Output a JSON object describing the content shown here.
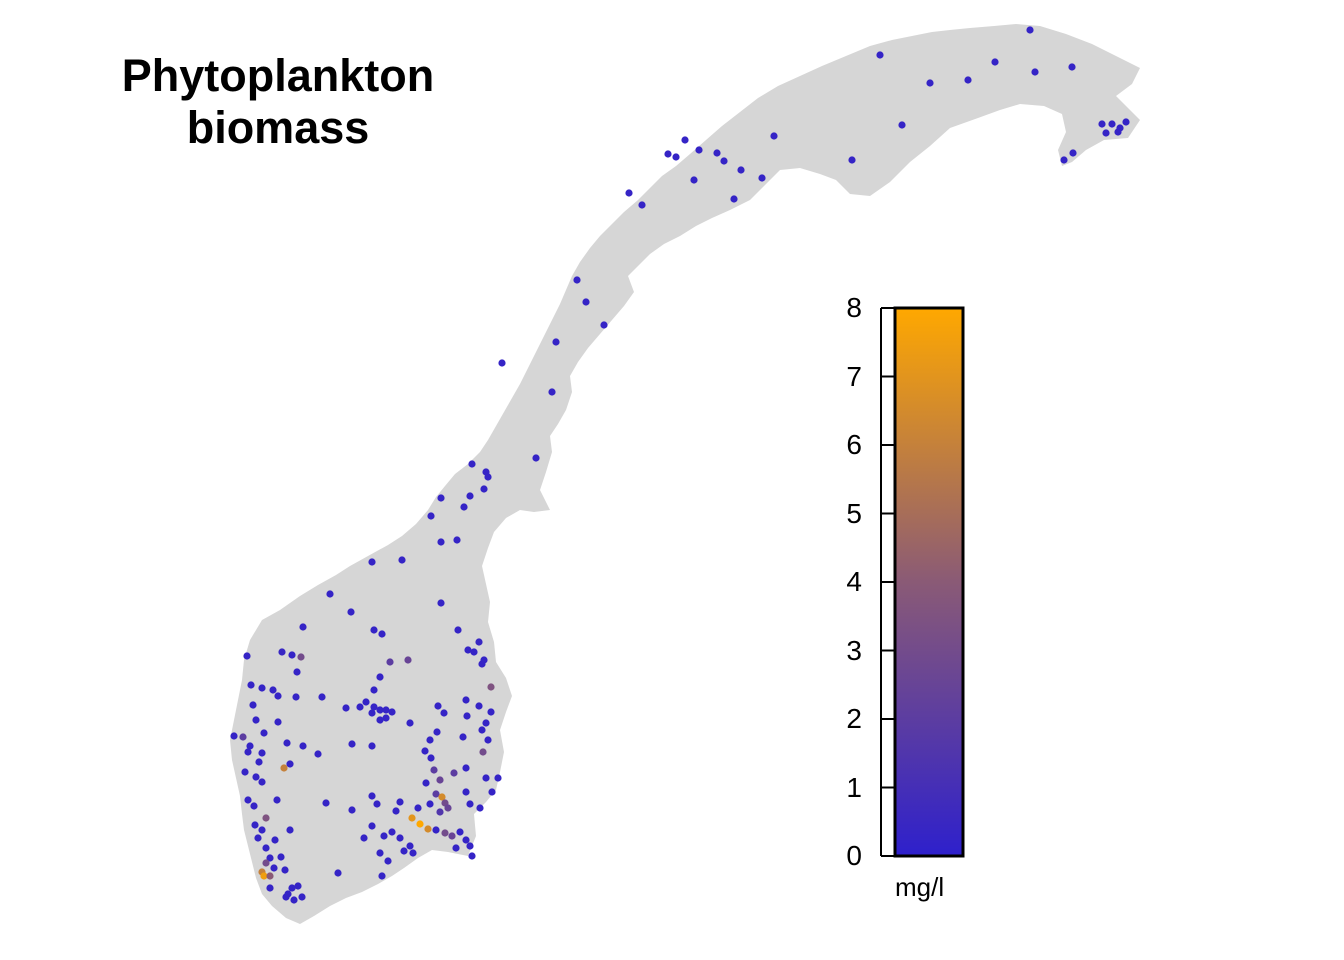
{
  "title": {
    "line1": "Phytoplankton",
    "line2": "biomass"
  },
  "legend": {
    "ticks": [
      "0",
      "1",
      "2",
      "3",
      "4",
      "5",
      "6",
      "7",
      "8"
    ],
    "min": 0,
    "max": 8,
    "unit": "mg/l",
    "color_low": "#2e20cc",
    "color_mid": "#8a5a76",
    "color_high": "#ffa800"
  },
  "map": {
    "land_color": "#d6d6d6",
    "background": "#ffffff",
    "sites_north": [
      [
        880,
        55,
        0.3
      ],
      [
        930,
        83,
        0.3
      ],
      [
        968,
        80,
        0.3
      ],
      [
        995,
        62,
        0.3
      ],
      [
        1030,
        30,
        0.3
      ],
      [
        1035,
        72,
        0.3
      ],
      [
        1072,
        67,
        0.3
      ],
      [
        902,
        125,
        0.3
      ],
      [
        852,
        160,
        0.3
      ],
      [
        774,
        136,
        0.3
      ],
      [
        1102,
        124,
        0.3
      ],
      [
        1112,
        124,
        0.3
      ],
      [
        1120,
        128,
        0.3
      ],
      [
        1126,
        122,
        0.3
      ],
      [
        1118,
        132,
        0.3
      ],
      [
        1106,
        133,
        0.3
      ],
      [
        1073,
        153,
        0.3
      ],
      [
        1064,
        160,
        0.3
      ],
      [
        685,
        140,
        0.3
      ],
      [
        668,
        154,
        0.3
      ],
      [
        676,
        157,
        0.3
      ],
      [
        699,
        150,
        0.3
      ],
      [
        717,
        153,
        0.3
      ],
      [
        724,
        161,
        0.3
      ],
      [
        741,
        170,
        0.3
      ],
      [
        762,
        178,
        0.3
      ],
      [
        694,
        180,
        0.3
      ],
      [
        734,
        199,
        0.3
      ],
      [
        629,
        193,
        0.3
      ],
      [
        642,
        205,
        0.3
      ],
      [
        577,
        280,
        0.3
      ],
      [
        586,
        302,
        0.3
      ],
      [
        604,
        325,
        0.3
      ],
      [
        556,
        342,
        0.3
      ],
      [
        502,
        363,
        0.3
      ],
      [
        552,
        392,
        0.3
      ],
      [
        536,
        458,
        0.3
      ],
      [
        472,
        464,
        0.3
      ],
      [
        486,
        472,
        0.3
      ],
      [
        488,
        477,
        0.3
      ],
      [
        484,
        489,
        0.3
      ],
      [
        470,
        496,
        0.3
      ],
      [
        464,
        507,
        0.3
      ],
      [
        441,
        498,
        0.3
      ],
      [
        431,
        516,
        0.3
      ],
      [
        457,
        540,
        0.3
      ],
      [
        441,
        542,
        0.3
      ],
      [
        402,
        560,
        0.3
      ],
      [
        372,
        562,
        0.3
      ],
      [
        330,
        594,
        0.3
      ],
      [
        441,
        603,
        0.3
      ],
      [
        351,
        612,
        0.3
      ],
      [
        303,
        627,
        0.3
      ],
      [
        374,
        630,
        0.3
      ],
      [
        382,
        634,
        0.3
      ]
    ],
    "sites_south": [
      [
        458,
        630,
        0.3
      ],
      [
        479,
        642,
        0.4
      ],
      [
        468,
        650,
        0.3
      ],
      [
        474,
        652,
        0.3
      ],
      [
        484,
        660,
        0.3
      ],
      [
        482,
        664,
        0.3
      ],
      [
        408,
        660,
        2.5
      ],
      [
        390,
        662,
        2.0
      ],
      [
        282,
        652,
        0.4
      ],
      [
        292,
        655,
        0.3
      ],
      [
        301,
        657,
        3.0
      ],
      [
        247,
        656,
        0.3
      ],
      [
        297,
        672,
        0.3
      ],
      [
        380,
        677,
        0.3
      ],
      [
        251,
        685,
        0.3
      ],
      [
        262,
        688,
        0.3
      ],
      [
        273,
        690,
        0.3
      ],
      [
        278,
        696,
        0.3
      ],
      [
        491,
        687,
        3.5
      ],
      [
        374,
        690,
        0.3
      ],
      [
        366,
        702,
        0.3
      ],
      [
        296,
        697,
        0.3
      ],
      [
        253,
        705,
        0.3
      ],
      [
        374,
        707,
        0.3
      ],
      [
        380,
        710,
        0.3
      ],
      [
        386,
        710,
        0.3
      ],
      [
        392,
        712,
        0.3
      ],
      [
        386,
        718,
        0.3
      ],
      [
        380,
        720,
        0.3
      ],
      [
        372,
        713,
        0.3
      ],
      [
        360,
        707,
        0.3
      ],
      [
        346,
        708,
        0.3
      ],
      [
        322,
        697,
        0.3
      ],
      [
        256,
        720,
        0.3
      ],
      [
        278,
        722,
        0.3
      ],
      [
        410,
        723,
        0.3
      ],
      [
        438,
        706,
        0.3
      ],
      [
        444,
        713,
        0.3
      ],
      [
        467,
        716,
        0.3
      ],
      [
        486,
        723,
        0.3
      ],
      [
        491,
        712,
        0.3
      ],
      [
        479,
        706,
        0.3
      ],
      [
        466,
        700,
        0.3
      ],
      [
        234,
        736,
        0.3
      ],
      [
        243,
        737,
        2.0
      ],
      [
        250,
        746,
        0.3
      ],
      [
        264,
        733,
        0.3
      ],
      [
        287,
        743,
        0.3
      ],
      [
        303,
        746,
        0.3
      ],
      [
        318,
        754,
        0.3
      ],
      [
        352,
        744,
        0.3
      ],
      [
        372,
        746,
        0.3
      ],
      [
        430,
        740,
        0.3
      ],
      [
        437,
        732,
        0.3
      ],
      [
        463,
        737,
        0.3
      ],
      [
        482,
        730,
        0.3
      ],
      [
        488,
        740,
        0.3
      ],
      [
        248,
        752,
        0.3
      ],
      [
        262,
        753,
        0.3
      ],
      [
        259,
        762,
        0.3
      ],
      [
        284,
        768,
        6.0
      ],
      [
        290,
        764,
        0.3
      ],
      [
        245,
        772,
        0.3
      ],
      [
        256,
        777,
        0.3
      ],
      [
        262,
        782,
        0.3
      ],
      [
        425,
        751,
        0.3
      ],
      [
        431,
        758,
        0.3
      ],
      [
        434,
        770,
        2.0
      ],
      [
        440,
        780,
        2.5
      ],
      [
        426,
        783,
        0.3
      ],
      [
        454,
        773,
        2.0
      ],
      [
        466,
        768,
        0.3
      ],
      [
        483,
        752,
        3.0
      ],
      [
        486,
        778,
        0.3
      ],
      [
        498,
        778,
        0.3
      ],
      [
        492,
        792,
        0.3
      ],
      [
        480,
        808,
        0.3
      ],
      [
        466,
        792,
        0.3
      ],
      [
        470,
        804,
        0.3
      ],
      [
        248,
        800,
        0.3
      ],
      [
        254,
        806,
        0.3
      ],
      [
        277,
        800,
        0.3
      ],
      [
        326,
        803,
        0.3
      ],
      [
        352,
        810,
        0.3
      ],
      [
        372,
        796,
        0.3
      ],
      [
        377,
        804,
        0.3
      ],
      [
        400,
        802,
        0.3
      ],
      [
        396,
        811,
        0.3
      ],
      [
        436,
        794,
        2.0
      ],
      [
        442,
        797,
        6.5
      ],
      [
        445,
        803,
        3.0
      ],
      [
        448,
        808,
        2.5
      ],
      [
        440,
        812,
        1.5
      ],
      [
        430,
        804,
        0.3
      ],
      [
        418,
        808,
        0.3
      ],
      [
        412,
        818,
        7.0
      ],
      [
        420,
        824,
        8.0
      ],
      [
        428,
        829,
        6.5
      ],
      [
        436,
        830,
        0.3
      ],
      [
        445,
        833,
        3.0
      ],
      [
        452,
        836,
        2.5
      ],
      [
        460,
        832,
        0.3
      ],
      [
        466,
        840,
        0.3
      ],
      [
        456,
        848,
        0.3
      ],
      [
        470,
        846,
        0.3
      ],
      [
        472,
        856,
        0.3
      ],
      [
        255,
        825,
        0.3
      ],
      [
        266,
        818,
        3.5
      ],
      [
        262,
        830,
        0.3
      ],
      [
        258,
        838,
        0.3
      ],
      [
        275,
        840,
        0.3
      ],
      [
        290,
        830,
        0.3
      ],
      [
        372,
        826,
        0.3
      ],
      [
        364,
        838,
        0.3
      ],
      [
        384,
        836,
        0.3
      ],
      [
        392,
        832,
        0.3
      ],
      [
        400,
        838,
        0.3
      ],
      [
        410,
        846,
        0.3
      ],
      [
        404,
        851,
        0.3
      ],
      [
        413,
        853,
        0.3
      ],
      [
        380,
        853,
        0.3
      ],
      [
        388,
        861,
        0.3
      ],
      [
        382,
        876,
        0.3
      ],
      [
        266,
        848,
        0.3
      ],
      [
        270,
        858,
        0.3
      ],
      [
        266,
        863,
        3.0
      ],
      [
        262,
        872,
        6.0
      ],
      [
        264,
        876,
        7.5
      ],
      [
        270,
        876,
        4.0
      ],
      [
        274,
        868,
        0.3
      ],
      [
        281,
        857,
        0.3
      ],
      [
        285,
        870,
        0.3
      ],
      [
        338,
        873,
        0.3
      ],
      [
        270,
        888,
        0.3
      ],
      [
        286,
        897,
        0.3
      ],
      [
        292,
        888,
        0.3
      ],
      [
        298,
        886,
        0.3
      ],
      [
        302,
        897,
        0.3
      ],
      [
        294,
        900,
        0.3
      ],
      [
        288,
        894,
        0.3
      ]
    ]
  }
}
